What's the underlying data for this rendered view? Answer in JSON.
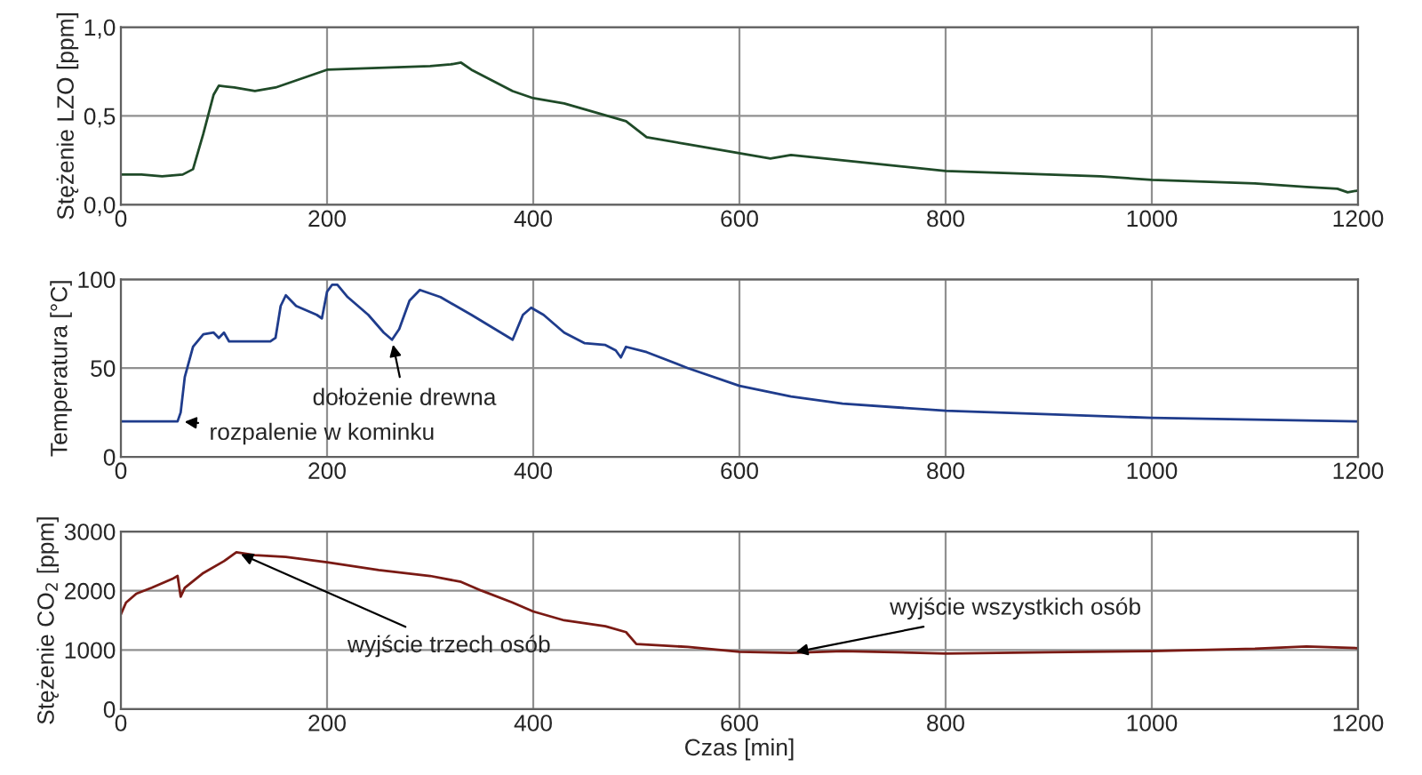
{
  "chart_data": [
    {
      "type": "line",
      "ylabel": "Stężenie LZO [ppm]",
      "xlim": [
        0,
        1200
      ],
      "xticks": [
        0,
        200,
        400,
        600,
        800,
        1000,
        1200
      ],
      "ylim": [
        0,
        1
      ],
      "yticks": [
        {
          "value": 0,
          "label": "0,0"
        },
        {
          "value": 0.5,
          "label": "0,5"
        },
        {
          "value": 1,
          "label": "1,0"
        }
      ],
      "grid": true,
      "series": [
        {
          "color": "#1f4a28",
          "x": [
            0,
            20,
            40,
            60,
            70,
            80,
            90,
            95,
            110,
            130,
            150,
            170,
            200,
            250,
            300,
            320,
            330,
            340,
            360,
            380,
            400,
            430,
            460,
            490,
            510,
            550,
            600,
            630,
            650,
            700,
            750,
            800,
            850,
            900,
            950,
            1000,
            1050,
            1100,
            1150,
            1180,
            1190,
            1200
          ],
          "values": [
            0.17,
            0.17,
            0.16,
            0.17,
            0.2,
            0.4,
            0.62,
            0.67,
            0.66,
            0.64,
            0.66,
            0.7,
            0.76,
            0.77,
            0.78,
            0.79,
            0.8,
            0.76,
            0.7,
            0.64,
            0.6,
            0.57,
            0.52,
            0.47,
            0.38,
            0.34,
            0.29,
            0.26,
            0.28,
            0.25,
            0.22,
            0.19,
            0.18,
            0.17,
            0.16,
            0.14,
            0.13,
            0.12,
            0.1,
            0.09,
            0.07,
            0.08
          ]
        }
      ]
    },
    {
      "type": "line",
      "ylabel": "Temperatura [°C]",
      "xlim": [
        0,
        1200
      ],
      "xticks": [
        0,
        200,
        400,
        600,
        800,
        1000,
        1200
      ],
      "ylim": [
        0,
        100
      ],
      "yticks": [
        0,
        50,
        100
      ],
      "grid": true,
      "annotations": [
        {
          "text": "dołożenie drewna",
          "x": 263,
          "y": 66
        },
        {
          "text": "rozpalenie w kominku",
          "x": 57,
          "y": 20
        }
      ],
      "series": [
        {
          "color": "#1f3c8c",
          "x": [
            0,
            55,
            58,
            62,
            70,
            80,
            90,
            95,
            100,
            105,
            120,
            145,
            150,
            155,
            160,
            170,
            190,
            195,
            200,
            205,
            210,
            220,
            240,
            255,
            263,
            270,
            280,
            290,
            310,
            340,
            380,
            390,
            398,
            410,
            430,
            450,
            470,
            480,
            485,
            490,
            510,
            550,
            600,
            650,
            700,
            800,
            900,
            1000,
            1100,
            1200
          ],
          "values": [
            20,
            20,
            25,
            45,
            62,
            69,
            70,
            67,
            70,
            65,
            65,
            65,
            67,
            85,
            91,
            85,
            80,
            78,
            93,
            97,
            97,
            90,
            80,
            70,
            66,
            72,
            88,
            94,
            90,
            80,
            66,
            80,
            84,
            80,
            70,
            64,
            63,
            60,
            56,
            62,
            59,
            50,
            40,
            34,
            30,
            26,
            24,
            22,
            21,
            20
          ]
        }
      ]
    },
    {
      "type": "line",
      "xlabel": "Czas [min]",
      "ylabel": "Stężenie CO$_{2}$ [ppm]",
      "xlim": [
        0,
        1200
      ],
      "xticks": [
        0,
        200,
        400,
        600,
        800,
        1000,
        1200
      ],
      "ylim": [
        0,
        3000
      ],
      "yticks": [
        0,
        1000,
        2000,
        3000
      ],
      "grid": true,
      "annotations": [
        {
          "text": "wyjście trzech osób",
          "x": 112,
          "y": 2650
        },
        {
          "text": "wyjście wszystkich osób",
          "x": 650,
          "y": 950
        }
      ],
      "series": [
        {
          "color": "#7a1a14",
          "x": [
            0,
            5,
            15,
            30,
            50,
            55,
            58,
            62,
            80,
            100,
            112,
            130,
            160,
            200,
            250,
            300,
            330,
            350,
            380,
            400,
            430,
            470,
            490,
            500,
            550,
            600,
            650,
            700,
            800,
            900,
            1000,
            1100,
            1150,
            1200
          ],
          "values": [
            1600,
            1800,
            1950,
            2050,
            2200,
            2250,
            1900,
            2050,
            2300,
            2500,
            2650,
            2600,
            2570,
            2480,
            2350,
            2250,
            2150,
            2000,
            1800,
            1650,
            1500,
            1400,
            1300,
            1100,
            1050,
            970,
            950,
            980,
            940,
            960,
            980,
            1020,
            1060,
            1030
          ]
        }
      ]
    }
  ]
}
